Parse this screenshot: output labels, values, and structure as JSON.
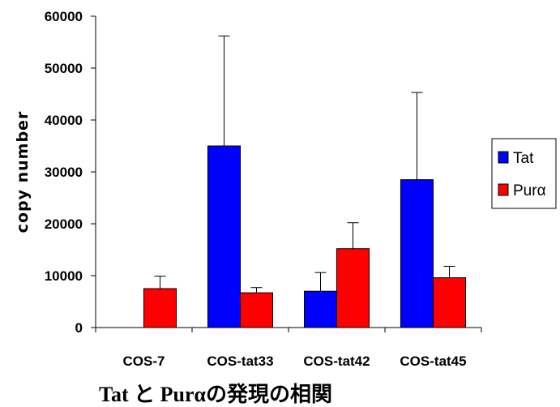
{
  "chart_data": {
    "type": "bar",
    "title": "",
    "caption": "Tat と Purαの発現の相関",
    "ylabel": "copy number",
    "xlabel": "",
    "ylim": [
      0,
      60000
    ],
    "yticks": [
      "0",
      "10000",
      "20000",
      "30000",
      "40000",
      "50000",
      "60000"
    ],
    "categories": [
      "COS-7",
      "COS-tat33",
      "COS-tat42",
      "COS-tat45"
    ],
    "series": [
      {
        "name": "Tat",
        "color": "#0000ff",
        "values": [
          0,
          35000,
          7000,
          28500
        ],
        "error": [
          0,
          21200,
          3600,
          16800
        ]
      },
      {
        "name": "Purα",
        "color": "#ff0000",
        "values": [
          7500,
          6700,
          15200,
          9600
        ],
        "error": [
          2400,
          1000,
          5000,
          2200
        ]
      }
    ],
    "legend_position": "right",
    "grid": false
  }
}
